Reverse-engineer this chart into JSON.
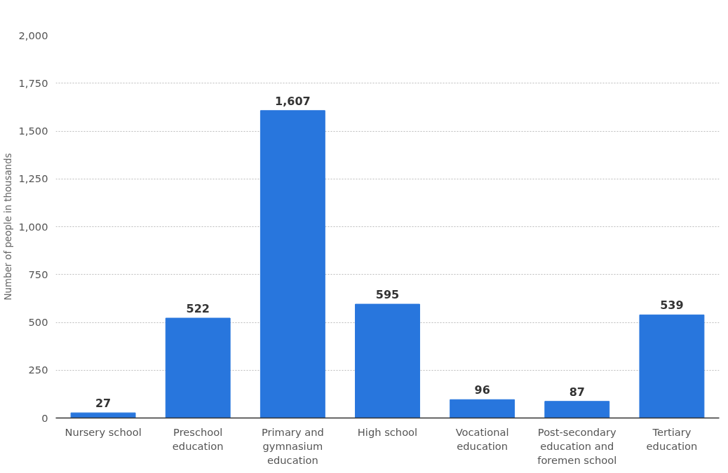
{
  "chart_data": {
    "type": "bar",
    "ylabel": "Number of people in thousands",
    "categories": [
      "Nursery school",
      "Preschool education",
      "Primary and gymnasium education",
      "High school",
      "Vocational education",
      "Post-secondary education and foremen school",
      "Tertiary education"
    ],
    "series": [
      {
        "color": "#2876dd",
        "values": [
          27,
          522,
          1607,
          595,
          96,
          87,
          539
        ],
        "value_labels": [
          "27",
          "522",
          "1,607",
          "595",
          "96",
          "87",
          "539"
        ]
      }
    ],
    "ylim": [
      0,
      2000
    ],
    "yticks": [
      {
        "value": 0,
        "label": "0"
      },
      {
        "value": 250,
        "label": "250"
      },
      {
        "value": 500,
        "label": "500"
      },
      {
        "value": 750,
        "label": "750"
      },
      {
        "value": 1000,
        "label": "1,000"
      },
      {
        "value": 1250,
        "label": "1,250"
      },
      {
        "value": 1500,
        "label": "1,500"
      },
      {
        "value": 1750,
        "label": "1,750"
      },
      {
        "value": 2000,
        "label": "2,000"
      }
    ],
    "grid": "y"
  }
}
